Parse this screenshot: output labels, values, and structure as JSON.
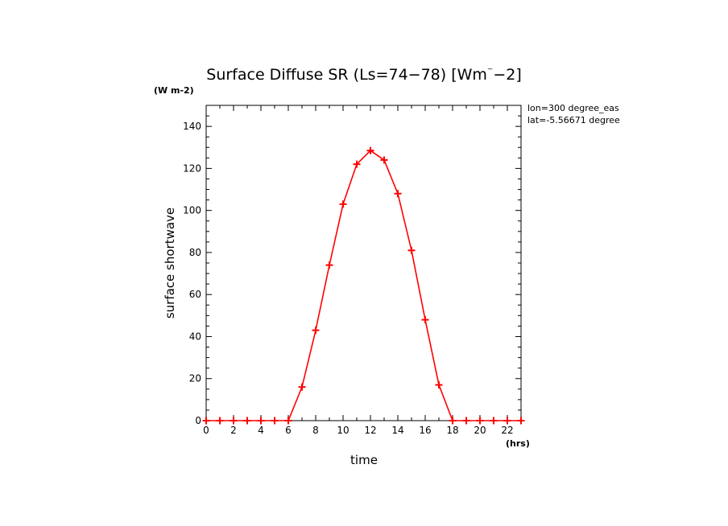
{
  "chart_data": {
    "type": "line",
    "title": "Surface Diffuse SR (Ls=74-78) [Wm^-2]",
    "title_prefix": "Surface Diffuse SR (Ls=74−78) [Wm",
    "title_superscript": "⁻",
    "title_suffix": "−2]",
    "y_unit": "(W m-2)",
    "x_unit": "(hrs)",
    "xlabel": "time",
    "ylabel": "surface shortwave",
    "annotations": [
      "lon=300 degree_eas",
      "lat=-5.56671 degree"
    ],
    "xlim": [
      0,
      23
    ],
    "ylim": [
      0,
      150
    ],
    "x_ticks": [
      0,
      2,
      4,
      6,
      8,
      10,
      12,
      14,
      16,
      18,
      20,
      22
    ],
    "y_ticks": [
      0,
      20,
      40,
      60,
      80,
      100,
      120,
      140
    ],
    "line_color": "#ff0000",
    "series": [
      {
        "x": [
          0,
          1,
          2,
          3,
          4,
          5,
          6,
          7,
          8,
          9,
          10,
          11,
          12,
          13,
          14,
          15,
          16,
          17,
          18,
          19,
          20,
          21,
          22,
          23
        ],
        "values": [
          0,
          0,
          0,
          0,
          0,
          0,
          0,
          16,
          43,
          74,
          103,
          122,
          128.5,
          124,
          108,
          81,
          48,
          17,
          0,
          0,
          0,
          0,
          0,
          0
        ]
      }
    ]
  }
}
